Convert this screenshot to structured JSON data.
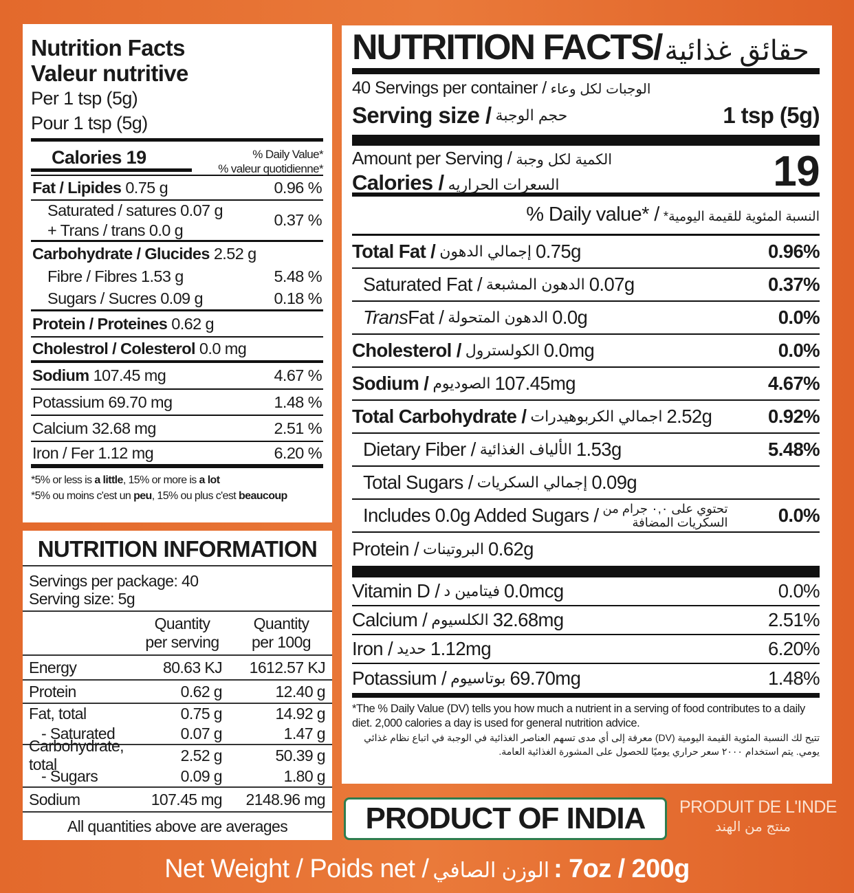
{
  "left_panel": {
    "title": "Nutrition Facts",
    "title_fr": "Valeur nutritive",
    "per": "Per 1 tsp (5g)",
    "per_fr": "Pour 1 tsp (5g)",
    "calories_label": "Calories 19",
    "dv_header": "% Daily Value*",
    "dv_header_fr": "% valeur quotidienne*",
    "rows": [
      {
        "label": "Fat / Lipides",
        "amount": "0.75 g",
        "dv": "0.96 %"
      },
      {
        "label": "Saturated / satures",
        "amount": "0.07 g",
        "label2": "+ Trans / trans",
        "amount2": "0.0 g",
        "dv": "0.37 %"
      },
      {
        "label": "Carbohydrate / Glucides",
        "amount": "2.52 g"
      },
      {
        "label": "Fibre / Fibres",
        "amount": "1.53 g",
        "dv": "5.48 %"
      },
      {
        "label": "Sugars / Sucres",
        "amount": "0.09 g",
        "dv": "0.18 %"
      },
      {
        "label": "Protein / Proteines",
        "amount": "0.62 g"
      },
      {
        "label": "Cholestrol / Colesterol",
        "amount": "0.0 mg"
      },
      {
        "label": "Sodium",
        "amount": "107.45 mg",
        "dv": "4.67 %"
      },
      {
        "label": "Potassium",
        "amount": "69.70 mg",
        "dv": "1.48 %"
      },
      {
        "label": "Calcium",
        "amount": "32.68 mg",
        "dv": "2.51 %"
      },
      {
        "label": "Iron / Fer",
        "amount": "1.12 mg",
        "dv": "6.20 %"
      }
    ],
    "footnote": [
      "*5% or less is ",
      "a little",
      ", 15% or more is ",
      "a lot"
    ],
    "footnote_fr": [
      "*5% ou moins c'est un ",
      "peu",
      ", 15% ou plus c'est ",
      "beaucoup"
    ]
  },
  "info_panel": {
    "title": "NUTRITION INFORMATION",
    "servings": "Servings per package: 40",
    "serving_size": "Serving size: 5g",
    "col_headers": [
      [
        "Quantity",
        "per serving"
      ],
      [
        "Quantity",
        "per 100g"
      ]
    ],
    "rows": [
      {
        "label": "Energy",
        "per_serving": "80.63 KJ",
        "per_100g": "1612.57 KJ"
      },
      {
        "label": "Protein",
        "per_serving": "0.62 g",
        "per_100g": "12.40 g"
      },
      {
        "label": "Fat, total",
        "per_serving": "0.75 g",
        "per_100g": "14.92 g"
      },
      {
        "label": "- Saturated",
        "per_serving": "0.07 g",
        "per_100g": "1.47 g"
      },
      {
        "label": "Carbohydrate, total",
        "per_serving": "2.52 g",
        "per_100g": "50.39 g"
      },
      {
        "label": "- Sugars",
        "per_serving": "0.09 g",
        "per_100g": "1.80 g"
      },
      {
        "label": "Sodium",
        "per_serving": "107.45 mg",
        "per_100g": "2148.96 mg"
      }
    ],
    "footer": "All quantities above are averages"
  },
  "right_panel": {
    "title": "NUTRITION FACTS/",
    "title_ar": "حقائق غذائية",
    "servings": "40 Servings per container /",
    "servings_ar": "الوجبات لكل وعاء",
    "serving_size_label": "Serving size /",
    "serving_size_ar": "حجم الوجبة",
    "serving_size": "1 tsp (5g)",
    "amount_label": "Amount per Serving /",
    "amount_ar": "الكمية لكل وجبة",
    "calories_label": "Calories /",
    "calories_ar": "السعرات الحراريه",
    "calories": "19",
    "dv_header": "% Daily value* /",
    "dv_header_ar": "النسبة المئوية للقيمة اليومية*",
    "rows": [
      {
        "label": "Total Fat /",
        "arabic": "إجمالي الدهون",
        "amount": "0.75g",
        "dv": "0.96%"
      },
      {
        "label": "Saturated Fat /",
        "arabic": "الدهون المشبعة",
        "amount": "0.07g",
        "dv": "0.37%"
      },
      {
        "label_italic": "Trans",
        "label": " Fat /",
        "arabic": "الدهون المتحولة",
        "amount": "0.0g",
        "dv": "0.0%"
      },
      {
        "label": "Cholesterol /",
        "arabic": "الكولسترول",
        "amount": "0.0mg",
        "dv": "0.0%"
      },
      {
        "label": "Sodium /",
        "arabic": "الصوديوم",
        "amount": "107.45mg",
        "dv": "4.67%"
      },
      {
        "label": "Total Carbohydrate /",
        "arabic": "اجمالي الكربوهيدرات",
        "amount": "2.52g",
        "dv": "0.92%"
      },
      {
        "label": "Dietary Fiber /",
        "arabic": "الألياف الغذائية",
        "amount": "1.53g",
        "dv": "5.48%"
      },
      {
        "label": "Total Sugars /",
        "arabic": "إجمالي السكريات",
        "amount": "0.09g"
      },
      {
        "label": "Includes 0.0g Added Sugars /",
        "arabic": "تحتوي على ٠,٠ جرام من",
        "arabic2": "السكريات المضافة",
        "dv": "0.0%"
      },
      {
        "label": "Protein /",
        "arabic": "البروتينات",
        "amount": "0.62g"
      }
    ],
    "minerals": [
      {
        "label": "Vitamin D /",
        "arabic": "فيتامين د",
        "amount": "0.0mcg",
        "dv": "0.0%"
      },
      {
        "label": "Calcium /",
        "arabic": "الكلسيوم",
        "amount": "32.68mg",
        "dv": "2.51%"
      },
      {
        "label": "Iron /",
        "arabic": "حديد",
        "amount": "1.12mg",
        "dv": "6.20%"
      },
      {
        "label": "Potassium /",
        "arabic": "بوتاسيوم",
        "amount": "69.70mg",
        "dv": "1.48%"
      }
    ],
    "footnote": "*The % Daily Value (DV) tells you how much a nutrient in a serving of food contributes to a daily diet. 2,000 calories a day is used for general nutrition advice.",
    "footnote_ar": "تتيح لك النسبة المئوية القيمة اليومية (DV) معرفة إلى أي مدى تسهم العناصر الغذائية في الوجبة في اتباع نظام غذائي يومي. يتم استخدام ٢٠٠٠ سعر حراري يوميًا للحصول على المشورة الغذائية العامة."
  },
  "origin": {
    "product_of": "PRODUCT OF INDIA",
    "product_of_fr": "PRODUIT DE L'INDE",
    "product_of_ar": "منتج من الهند"
  },
  "net_weight": {
    "label": "Net Weight / Poids net /",
    "label_ar": "الوزن الصافي",
    "value": ": 7oz / 200g"
  }
}
